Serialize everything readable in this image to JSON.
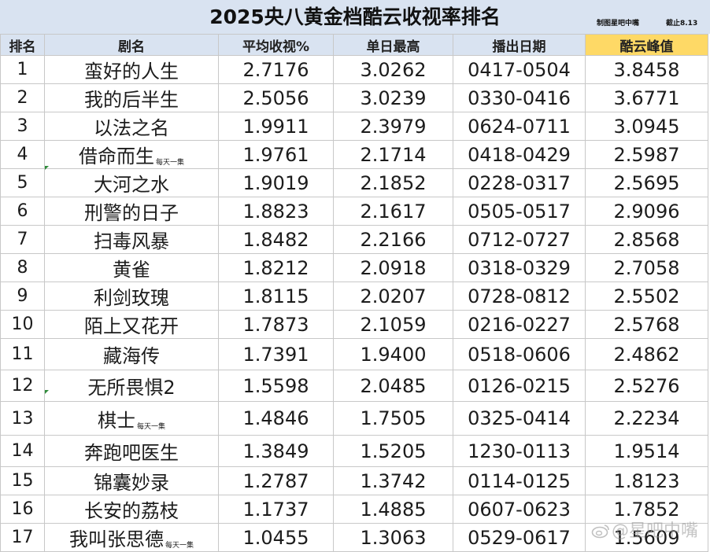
{
  "title": "2025央八黄金档酷云收视率排名",
  "credits": {
    "maker": "制图星吧中嘴",
    "cutoff": "截止8.13"
  },
  "watermark": "@星吧中嘴",
  "columns": [
    "排名",
    "剧名",
    "平均收视%",
    "单日最高",
    "播出日期",
    "酷云峰值"
  ],
  "colors": {
    "header_bg": "#d9e3f1",
    "peak_header_bg": "#fed966",
    "grid": "#c8c8c8"
  },
  "rows": [
    {
      "rank": "1",
      "name": "蛮好的人生",
      "note": "",
      "avg": "2.7176",
      "max": "3.0262",
      "dates": "0417-0504",
      "peak": "3.8458"
    },
    {
      "rank": "2",
      "name": "我的后半生",
      "note": "",
      "avg": "2.5056",
      "max": "3.0239",
      "dates": "0330-0416",
      "peak": "3.6771"
    },
    {
      "rank": "3",
      "name": "以法之名",
      "note": "",
      "avg": "1.9911",
      "max": "2.3979",
      "dates": "0624-0711",
      "peak": "3.0945"
    },
    {
      "rank": "4",
      "name": "借命而生",
      "note": "每天一集",
      "avg": "1.9761",
      "max": "2.1714",
      "dates": "0418-0429",
      "peak": "2.5987"
    },
    {
      "rank": "5",
      "name": "大河之水",
      "note": "",
      "avg": "1.9019",
      "max": "2.1852",
      "dates": "0228-0317",
      "peak": "2.5695"
    },
    {
      "rank": "6",
      "name": "刑警的日子",
      "note": "",
      "avg": "1.8823",
      "max": "2.1617",
      "dates": "0505-0517",
      "peak": "2.9096"
    },
    {
      "rank": "7",
      "name": "扫毒风暴",
      "note": "",
      "avg": "1.8482",
      "max": "2.2166",
      "dates": "0712-0727",
      "peak": "2.8568"
    },
    {
      "rank": "8",
      "name": "黄雀",
      "note": "",
      "avg": "1.8212",
      "max": "2.0918",
      "dates": "0318-0329",
      "peak": "2.7058"
    },
    {
      "rank": "9",
      "name": "利剑玫瑰",
      "note": "",
      "avg": "1.8115",
      "max": "2.0207",
      "dates": "0728-0812",
      "peak": "2.5502"
    },
    {
      "rank": "10",
      "name": "陌上又花开",
      "note": "",
      "avg": "1.7873",
      "max": "2.1059",
      "dates": "0216-0227",
      "peak": "2.5768"
    },
    {
      "rank": "11",
      "name": "藏海传",
      "note": "",
      "avg": "1.7391",
      "max": "1.9400",
      "dates": "0518-0606",
      "peak": "2.4862"
    },
    {
      "rank": "12",
      "name": "无所畏惧2",
      "note": "",
      "avg": "1.5598",
      "max": "2.0485",
      "dates": "0126-0215",
      "peak": "2.5276"
    },
    {
      "rank": "13",
      "name": "棋士",
      "note": "每天一集",
      "avg": "1.4846",
      "max": "1.7505",
      "dates": "0325-0414",
      "peak": "2.2234"
    },
    {
      "rank": "14",
      "name": "奔跑吧医生",
      "note": "",
      "avg": "1.3849",
      "max": "1.5205",
      "dates": "1230-0113",
      "peak": "1.9514"
    },
    {
      "rank": "15",
      "name": "锦囊妙录",
      "note": "",
      "avg": "1.2787",
      "max": "1.3742",
      "dates": "0114-0125",
      "peak": "1.8123"
    },
    {
      "rank": "16",
      "name": "长安的荔枝",
      "note": "",
      "avg": "1.1737",
      "max": "1.4885",
      "dates": "0607-0623",
      "peak": "1.7852"
    },
    {
      "rank": "17",
      "name": "我叫张思德",
      "note": "每天一集",
      "avg": "1.0455",
      "max": "1.3063",
      "dates": "0529-0617",
      "peak": "1.5609"
    }
  ]
}
